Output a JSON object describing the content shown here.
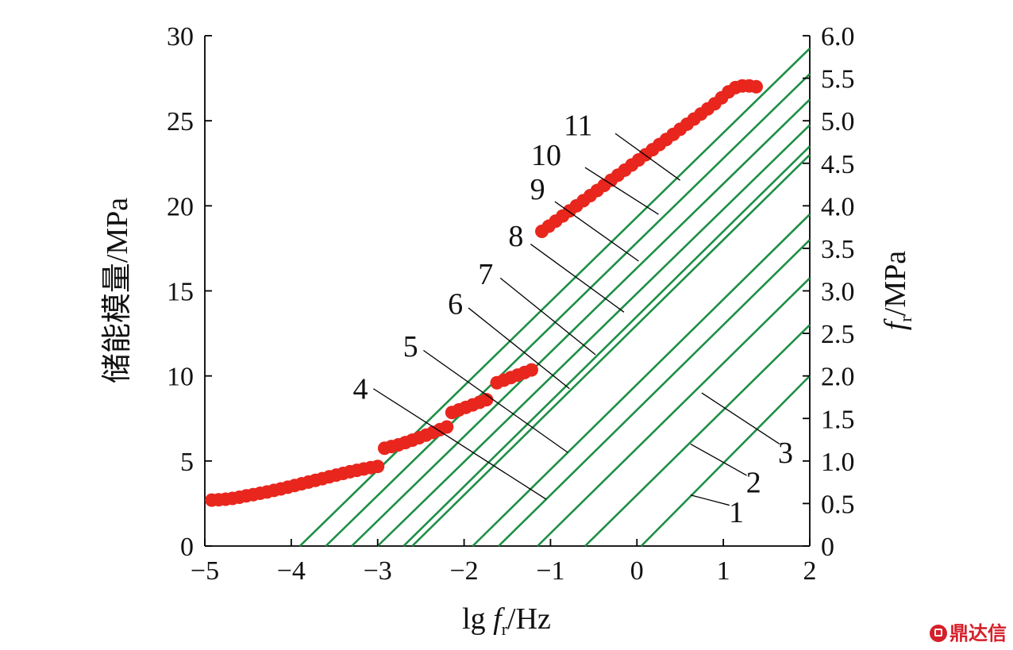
{
  "chart_data": {
    "type": "scatter",
    "x_axis": {
      "label_main": "lg ",
      "label_var": "f",
      "label_sub": "r",
      "label_unit": "/Hz",
      "range": [
        -5,
        2
      ],
      "ticks": [
        -5,
        -4,
        -3,
        -2,
        -1,
        0,
        1,
        2
      ],
      "tick_labels": [
        "−5",
        "−4",
        "−3",
        "−2",
        "−1",
        "0",
        "1",
        "2"
      ]
    },
    "y_left_axis": {
      "label": "储能模量/MPa",
      "range": [
        0,
        30
      ],
      "ticks": [
        0,
        5,
        10,
        15,
        20,
        25,
        30
      ],
      "tick_labels": [
        "0",
        "5",
        "10",
        "15",
        "20",
        "25",
        "30"
      ]
    },
    "y_right_axis": {
      "label_var": "f",
      "label_sub": "r",
      "label_unit": "/MPa",
      "range": [
        0,
        6.0
      ],
      "ticks": [
        0,
        0.5,
        1.0,
        1.5,
        2.0,
        2.5,
        3.0,
        3.5,
        4.0,
        4.5,
        5.0,
        5.5,
        6.0
      ],
      "tick_labels": [
        "0",
        "0.5",
        "1.0",
        "1.5",
        "2.0",
        "2.5",
        "3.0",
        "3.5",
        "4.0",
        "4.5",
        "5.0",
        "5.5",
        "6.0"
      ]
    },
    "storage_modulus_series": {
      "color": "#e8261d",
      "segments": [
        {
          "x": [
            -4.92,
            -4.84,
            -4.76,
            -4.68,
            -4.6,
            -4.52,
            -4.44,
            -4.36,
            -4.28,
            -4.2,
            -4.12,
            -4.04,
            -3.96,
            -3.88,
            -3.8,
            -3.72,
            -3.64,
            -3.56,
            -3.48,
            -3.4,
            -3.32,
            -3.24,
            -3.16,
            -3.08,
            -3.0
          ],
          "y": [
            2.7,
            2.72,
            2.75,
            2.8,
            2.87,
            2.95,
            3.02,
            3.1,
            3.18,
            3.27,
            3.36,
            3.46,
            3.56,
            3.66,
            3.76,
            3.86,
            3.96,
            4.07,
            4.17,
            4.27,
            4.37,
            4.45,
            4.53,
            4.61,
            4.68
          ]
        },
        {
          "x": [
            -2.92,
            -2.84,
            -2.76,
            -2.68,
            -2.6,
            -2.52,
            -2.44,
            -2.36,
            -2.28,
            -2.2
          ],
          "y": [
            5.75,
            5.85,
            5.95,
            6.08,
            6.22,
            6.37,
            6.52,
            6.68,
            6.84,
            7.0
          ]
        },
        {
          "x": [
            -2.14,
            -2.06,
            -1.98,
            -1.9,
            -1.82,
            -1.74
          ],
          "y": [
            7.85,
            8.0,
            8.15,
            8.3,
            8.45,
            8.6
          ]
        },
        {
          "x": [
            -1.62,
            -1.54,
            -1.46,
            -1.38,
            -1.3,
            -1.22
          ],
          "y": [
            9.6,
            9.75,
            9.9,
            10.05,
            10.2,
            10.35
          ]
        },
        {
          "x": [
            -1.1,
            -1.02,
            -0.94,
            -0.86,
            -0.78,
            -0.7,
            -0.62,
            -0.54,
            -0.46,
            -0.38,
            -0.3,
            -0.22,
            -0.14,
            -0.06,
            0.02,
            0.1,
            0.18,
            0.26,
            0.34,
            0.42,
            0.5,
            0.58,
            0.66,
            0.74,
            0.82,
            0.9,
            0.98,
            1.06,
            1.14,
            1.22,
            1.3,
            1.38
          ],
          "y": [
            18.5,
            18.8,
            19.1,
            19.4,
            19.7,
            20.0,
            20.3,
            20.6,
            20.9,
            21.2,
            21.5,
            21.8,
            22.1,
            22.4,
            22.7,
            23.0,
            23.3,
            23.6,
            23.9,
            24.2,
            24.5,
            24.8,
            25.1,
            25.4,
            25.7,
            26.0,
            26.35,
            26.7,
            26.95,
            27.05,
            27.05,
            27.0
          ]
        }
      ]
    },
    "fr_lines": {
      "color": "#1e8f46",
      "note_units": "each line: x from x_start (f_r=0) to 2, f_r value at x=2 on right axis",
      "lines": [
        {
          "x_start": 0.05,
          "fr_end": 2.0
        },
        {
          "x_start": -0.6,
          "fr_end": 2.6
        },
        {
          "x_start": -1.15,
          "fr_end": 3.15
        },
        {
          "x_start": -1.6,
          "fr_end": 3.6
        },
        {
          "x_start": -1.9,
          "fr_end": 3.9
        },
        {
          "x_start": -2.6,
          "fr_end": 4.6
        },
        {
          "x_start": -2.7,
          "fr_end": 4.7
        },
        {
          "x_start": -3.0,
          "fr_end": 4.95
        },
        {
          "x_start": -3.3,
          "fr_end": 5.25
        },
        {
          "x_start": -3.6,
          "fr_end": 5.55
        },
        {
          "x_start": -3.9,
          "fr_end": 5.85
        }
      ]
    },
    "annotations": [
      {
        "text": "1",
        "label_at": [
          1.15,
          0.4
        ],
        "line_from": [
          0.62,
          0.6
        ],
        "line_to": [
          1.07,
          0.48
        ]
      },
      {
        "text": "2",
        "label_at": [
          1.35,
          0.75
        ],
        "line_from": [
          0.62,
          1.2
        ],
        "line_to": [
          1.27,
          0.83
        ]
      },
      {
        "text": "3",
        "label_at": [
          1.72,
          1.1
        ],
        "line_from": [
          0.75,
          1.8
        ],
        "line_to": [
          1.65,
          1.2
        ]
      },
      {
        "text": "4",
        "label_at": [
          -3.2,
          1.85
        ],
        "line_from": [
          -3.05,
          1.85
        ],
        "line_to": [
          -1.05,
          0.55
        ]
      },
      {
        "text": "5",
        "label_at": [
          -2.62,
          2.35
        ],
        "line_from": [
          -2.47,
          2.3
        ],
        "line_to": [
          -0.8,
          1.1
        ]
      },
      {
        "text": "6",
        "label_at": [
          -2.1,
          2.85
        ],
        "line_from": [
          -1.95,
          2.8
        ],
        "line_to": [
          -0.78,
          1.85
        ]
      },
      {
        "text": "7",
        "label_at": [
          -1.75,
          3.2
        ],
        "line_from": [
          -1.58,
          3.15
        ],
        "line_to": [
          -0.48,
          2.25
        ]
      },
      {
        "text": "8",
        "label_at": [
          -1.4,
          3.65
        ],
        "line_from": [
          -1.23,
          3.55
        ],
        "line_to": [
          -0.15,
          2.75
        ]
      },
      {
        "text": "9",
        "label_at": [
          -1.15,
          4.2
        ],
        "line_from": [
          -0.95,
          4.05
        ],
        "line_to": [
          0.02,
          3.35
        ]
      },
      {
        "text": "10",
        "label_at": [
          -1.05,
          4.6
        ],
        "line_from": [
          -0.6,
          4.45
        ],
        "line_to": [
          0.25,
          3.9
        ]
      },
      {
        "text": "11",
        "label_at": [
          -0.68,
          4.95
        ],
        "line_from": [
          -0.25,
          4.85
        ],
        "line_to": [
          0.5,
          4.3
        ]
      }
    ]
  },
  "watermark": "鼎达信"
}
